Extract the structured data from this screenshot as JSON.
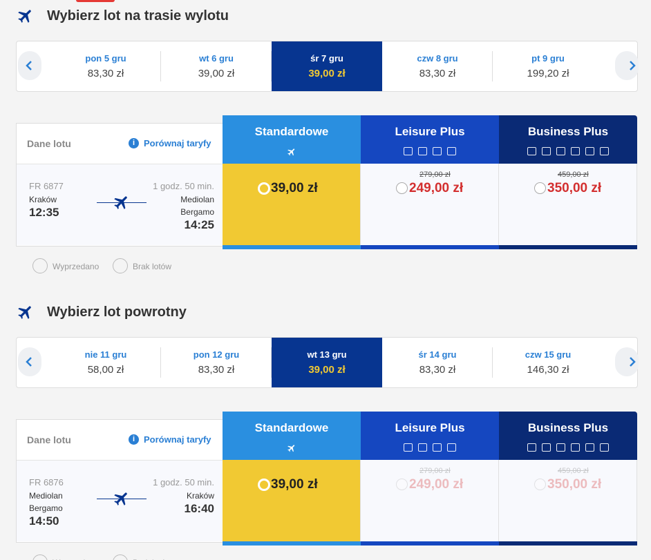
{
  "outbound": {
    "title": "Wybierz lot na trasie wylotu",
    "dates": [
      {
        "day": "pon 5 gru",
        "price": "83,30 zł"
      },
      {
        "day": "wt 6 gru",
        "price": "39,00 zł"
      },
      {
        "day": "śr 7 gru",
        "price": "39,00 zł"
      },
      {
        "day": "czw 8 gru",
        "price": "83,30 zł"
      },
      {
        "day": "pt 9 gru",
        "price": "199,20 zł"
      }
    ],
    "details_label": "Dane lotu",
    "compare": "Porównaj taryfy",
    "fares": [
      {
        "name": "Standardowe",
        "price": "39,00 zł"
      },
      {
        "name": "Leisure Plus",
        "old_price": "279,00 zł",
        "price": "249,00 zł"
      },
      {
        "name": "Business Plus",
        "old_price": "459,00 zł",
        "price": "350,00 zł"
      }
    ],
    "flight": {
      "number": "FR 6877",
      "duration": "1 godz. 50 min.",
      "from": "Kraków",
      "to": "Mediolan Bergamo",
      "depart": "12:35",
      "arrive": "14:25"
    },
    "legend": [
      "Wyprzedano",
      "Brak lotów"
    ]
  },
  "return": {
    "title": "Wybierz lot powrotny",
    "dates": [
      {
        "day": "nie 11 gru",
        "price": "58,00 zł"
      },
      {
        "day": "pon 12 gru",
        "price": "83,30 zł"
      },
      {
        "day": "wt 13 gru",
        "price": "39,00 zł"
      },
      {
        "day": "śr 14 gru",
        "price": "83,30 zł"
      },
      {
        "day": "czw 15 gru",
        "price": "146,30 zł"
      }
    ],
    "details_label": "Dane lotu",
    "compare": "Porównaj taryfy",
    "fares": [
      {
        "name": "Standardowe",
        "price": "39,00 zł"
      },
      {
        "name": "Leisure Plus",
        "old_price": "279,00 zł",
        "price": "249,00 zł"
      },
      {
        "name": "Business Plus",
        "old_price": "459,00 zł",
        "price": "350,00 zł"
      }
    ],
    "flight": {
      "number": "FR 6876",
      "duration": "1 godz. 50 min.",
      "from": "Mediolan Bergamo",
      "to": "Kraków",
      "depart": "14:50",
      "arrive": "16:40"
    },
    "legend": [
      "Wyprzedano",
      "Brak lotów"
    ]
  }
}
